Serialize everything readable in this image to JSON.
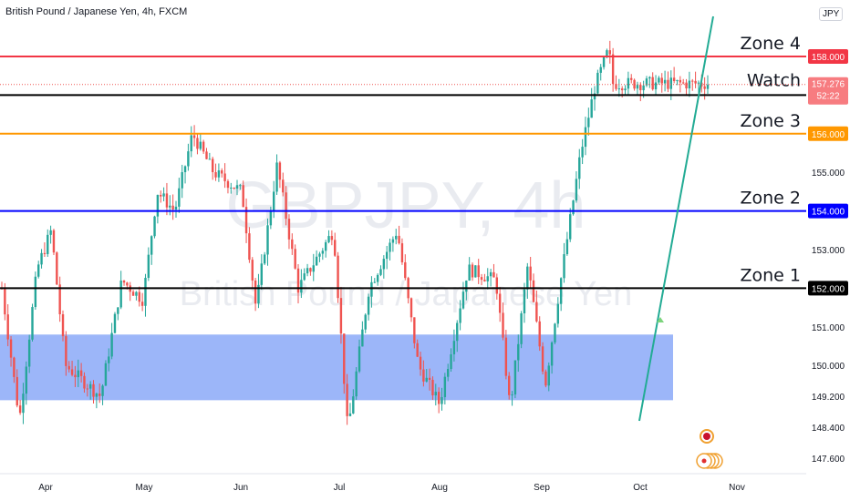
{
  "header": {
    "title": "British Pound / Japanese Yen, 4h, FXCM"
  },
  "currency_button": "JPY",
  "top_price_fragment": "1",
  "watermark": {
    "symbol": "GBPJPY, 4h",
    "name": "British Pound / Japanese Yen"
  },
  "colors": {
    "bull": "#26a69a",
    "bear": "#ef5350",
    "zone4": "#f23645",
    "zone3": "#ff9800",
    "zone2": "#0000ff",
    "zone1": "#000000",
    "watch": "#000000",
    "box": "#7b9ef7",
    "trend": "#22ab94"
  },
  "chart_data": {
    "type": "candlestick",
    "y_axis": {
      "range": [
        147.5,
        159.0
      ],
      "tick_labels": [
        "155.000",
        "153.000",
        "151.000",
        "150.000",
        "149.200",
        "148.400",
        "147.600"
      ]
    },
    "x_axis": {
      "tick_labels": [
        "Apr",
        "May",
        "Jun",
        "Jul",
        "Aug",
        "Sep",
        "Oct",
        "Nov"
      ]
    },
    "levels": [
      {
        "label": "Zone 4",
        "price": 158.0,
        "price_label": "158.000",
        "color": "#f23645"
      },
      {
        "label": "Watch",
        "price": 157.0,
        "price_label": "157.000",
        "color": "#000000"
      },
      {
        "label": "Zone 3",
        "price": 156.0,
        "price_label": "156.000",
        "color": "#ff9800"
      },
      {
        "label": "Zone 2",
        "price": 154.0,
        "price_label": "154.000",
        "color": "#0000ff"
      },
      {
        "label": "Zone 1",
        "price": 152.0,
        "price_label": "152.000",
        "color": "#000000"
      }
    ],
    "current_price": {
      "price": 157.276,
      "label": "157.276",
      "countdown": "52:22"
    },
    "demand_zone": {
      "from": "Mar",
      "to": "mid Oct",
      "low": 149.1,
      "high": 150.8
    },
    "trendline": {
      "from_price": 148.8,
      "to_price": 159.0,
      "start": "early Oct",
      "end": "late Oct"
    },
    "price_path": [
      [
        0.0,
        152.0
      ],
      [
        0.025,
        148.6
      ],
      [
        0.05,
        152.5
      ],
      [
        0.07,
        153.5
      ],
      [
        0.09,
        150.0
      ],
      [
        0.14,
        149.2
      ],
      [
        0.17,
        152.2
      ],
      [
        0.2,
        151.7
      ],
      [
        0.22,
        154.5
      ],
      [
        0.245,
        154.0
      ],
      [
        0.27,
        156.0
      ],
      [
        0.3,
        155.0
      ],
      [
        0.34,
        154.5
      ],
      [
        0.36,
        151.5
      ],
      [
        0.39,
        155.2
      ],
      [
        0.42,
        152.0
      ],
      [
        0.47,
        153.5
      ],
      [
        0.49,
        148.3
      ],
      [
        0.52,
        152.0
      ],
      [
        0.56,
        153.5
      ],
      [
        0.59,
        150.0
      ],
      [
        0.62,
        149.0
      ],
      [
        0.66,
        152.5
      ],
      [
        0.7,
        152.2
      ],
      [
        0.72,
        148.9
      ],
      [
        0.745,
        152.6
      ],
      [
        0.77,
        149.5
      ],
      [
        0.79,
        152.0
      ],
      [
        0.82,
        155.5
      ],
      [
        0.84,
        157.2
      ],
      [
        0.86,
        158.2
      ],
      [
        0.865,
        157.3
      ]
    ]
  }
}
